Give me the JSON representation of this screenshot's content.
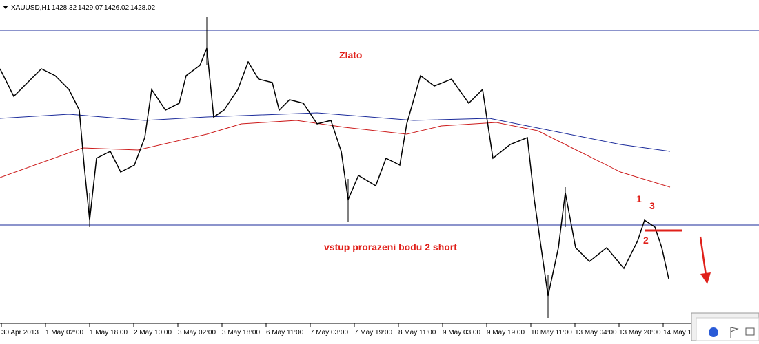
{
  "header": {
    "symbol": "XAUUSD,H1",
    "open": "1428.32",
    "high": "1429.07",
    "low": "1426.02",
    "close": "1428.02"
  },
  "annotations": {
    "title": "Zlato",
    "entry": "vstup prorazeni bodu 2 short",
    "point1": "1",
    "point2": "2",
    "point3": "3"
  },
  "time_axis": [
    "30 Apr 2013",
    "1 May 02:00",
    "1 May 18:00",
    "2 May 10:00",
    "3 May 02:00",
    "3 May 18:00",
    "6 May 11:00",
    "7 May 03:00",
    "7 May 19:00",
    "8 May 11:00",
    "9 May 03:00",
    "9 May 19:00",
    "10 May 11:00",
    "13 May 04:00",
    "13 May 20:00",
    "14 May 1"
  ]
}
